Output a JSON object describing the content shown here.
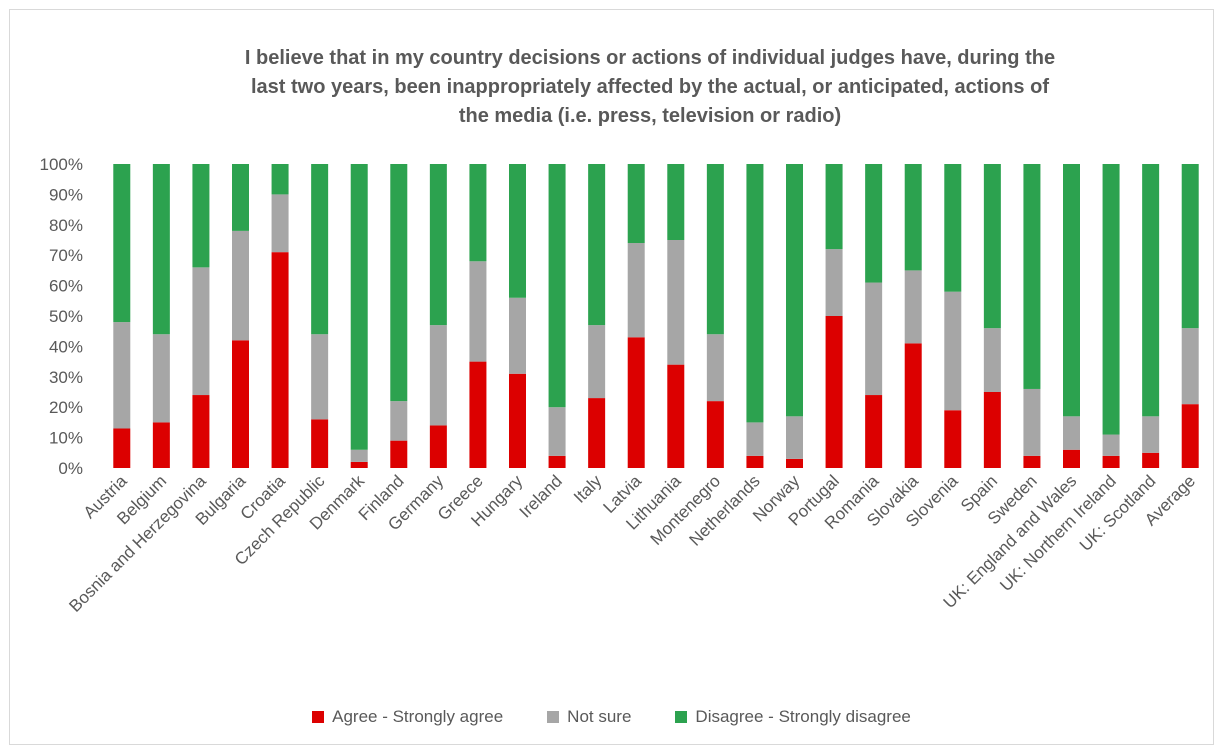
{
  "colors": {
    "agree": "#dc0000",
    "not_sure": "#a6a6a6",
    "disagree": "#2ca24f",
    "text": "#595959",
    "grid": "#d9d9d9"
  },
  "chart_data": {
    "type": "bar",
    "stacked": true,
    "title_lines": [
      "I believe that in my country decisions or actions of individual judges have, during the",
      "last two years, been inappropriately affected by the actual, or anticipated, actions of",
      "the media (i.e. press, television or radio)"
    ],
    "ylim": [
      0,
      100
    ],
    "y_ticks": [
      "0%",
      "10%",
      "20%",
      "30%",
      "40%",
      "50%",
      "60%",
      "70%",
      "80%",
      "90%",
      "100%"
    ],
    "grid": false,
    "legend_position": "bottom",
    "categories": [
      "Austria",
      "Belgium",
      "Bosnia and Herzegovina",
      "Bulgaria",
      "Croatia",
      "Czech Republic",
      "Denmark",
      "Finland",
      "Germany",
      "Greece",
      "Hungary",
      "Ireland",
      "Italy",
      "Latvia",
      "Lithuania",
      "Montenegro",
      "Netherlands",
      "Norway",
      "Portugal",
      "Romania",
      "Slovakia",
      "Slovenia",
      "Spain",
      "Sweden",
      "UK: England and Wales",
      "UK: Northern Ireland",
      "UK: Scotland",
      "Average"
    ],
    "series": [
      {
        "name": "Agree - Strongly agree",
        "values": [
          13,
          15,
          24,
          42,
          71,
          16,
          2,
          9,
          14,
          35,
          31,
          4,
          23,
          43,
          34,
          22,
          4,
          3,
          50,
          24,
          41,
          19,
          25,
          4,
          6,
          4,
          5,
          21
        ]
      },
      {
        "name": "Not sure",
        "values": [
          35,
          29,
          42,
          36,
          19,
          28,
          4,
          13,
          33,
          33,
          25,
          16,
          24,
          31,
          41,
          22,
          11,
          14,
          22,
          37,
          24,
          39,
          21,
          22,
          11,
          7,
          12,
          25
        ]
      },
      {
        "name": "Disagree - Strongly disagree",
        "values": [
          52,
          56,
          34,
          22,
          10,
          56,
          94,
          78,
          53,
          32,
          44,
          80,
          53,
          26,
          25,
          56,
          85,
          83,
          28,
          39,
          35,
          42,
          54,
          74,
          83,
          89,
          83,
          54
        ]
      }
    ]
  }
}
